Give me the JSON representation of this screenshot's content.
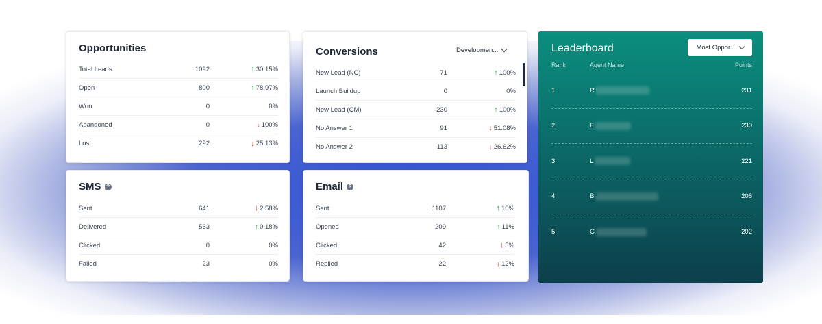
{
  "opportunities": {
    "title": "Opportunities",
    "rows": [
      {
        "label": "Total Leads",
        "value": "1092",
        "trend": "up",
        "pct": "30.15%"
      },
      {
        "label": "Open",
        "value": "800",
        "trend": "up",
        "pct": "78.97%"
      },
      {
        "label": "Won",
        "value": "0",
        "trend": "none",
        "pct": "0%"
      },
      {
        "label": "Abandoned",
        "value": "0",
        "trend": "down",
        "pct": "100%"
      },
      {
        "label": "Lost",
        "value": "292",
        "trend": "down",
        "pct": "25.13%"
      }
    ]
  },
  "conversions": {
    "title": "Conversions",
    "dropdown": "Developmen...",
    "rows": [
      {
        "label": "New Lead (NC)",
        "value": "71",
        "trend": "up",
        "pct": "100%"
      },
      {
        "label": "Launch Buildup",
        "value": "0",
        "trend": "none",
        "pct": "0%"
      },
      {
        "label": "New Lead (CM)",
        "value": "230",
        "trend": "up",
        "pct": "100%"
      },
      {
        "label": "No Answer 1",
        "value": "91",
        "trend": "down",
        "pct": "51.08%"
      },
      {
        "label": "No Answer 2",
        "value": "113",
        "trend": "down",
        "pct": "26.62%"
      }
    ]
  },
  "sms": {
    "title": "SMS",
    "rows": [
      {
        "label": "Sent",
        "value": "641",
        "trend": "down",
        "pct": "2.58%"
      },
      {
        "label": "Delivered",
        "value": "563",
        "trend": "up",
        "pct": "0.18%"
      },
      {
        "label": "Clicked",
        "value": "0",
        "trend": "none",
        "pct": "0%"
      },
      {
        "label": "Failed",
        "value": "23",
        "trend": "none",
        "pct": "0%"
      }
    ]
  },
  "email": {
    "title": "Email",
    "rows": [
      {
        "label": "Sent",
        "value": "1107",
        "trend": "up",
        "pct": "10%"
      },
      {
        "label": "Opened",
        "value": "209",
        "trend": "up",
        "pct": "11%"
      },
      {
        "label": "Clicked",
        "value": "42",
        "trend": "down",
        "pct": "5%"
      },
      {
        "label": "Replied",
        "value": "22",
        "trend": "down",
        "pct": "12%"
      }
    ]
  },
  "leaderboard": {
    "title": "Leaderboard",
    "sort_label": "Most Oppor...",
    "col_rank": "Rank",
    "col_agent": "Agent Name",
    "col_points": "Points",
    "rows": [
      {
        "rank": "1",
        "agent": "R",
        "points": "231"
      },
      {
        "rank": "2",
        "agent": "E",
        "points": "230"
      },
      {
        "rank": "3",
        "agent": "L",
        "points": "221"
      },
      {
        "rank": "4",
        "agent": "B",
        "points": "208"
      },
      {
        "rank": "5",
        "agent": "C",
        "points": "202"
      }
    ]
  },
  "colors": {
    "up": "#16a34a",
    "down": "#dc2626",
    "leaderboard_top": "#0b8f7f",
    "leaderboard_bottom": "#0c3f4b"
  }
}
